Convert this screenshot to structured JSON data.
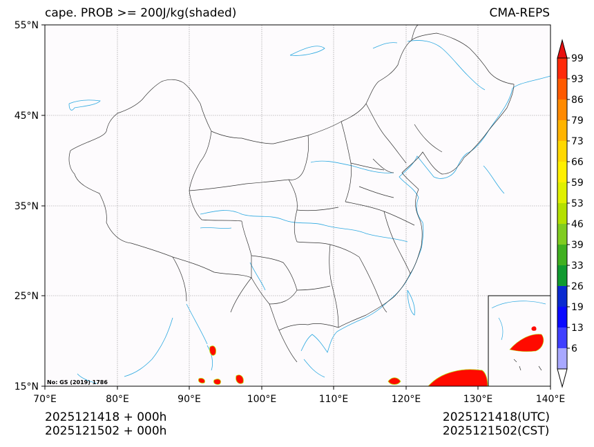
{
  "title_left": "cape. PROB >= 200J/kg(shaded)",
  "title_right": "CMA-REPS",
  "footer": {
    "left_line1": "2025121418  +  000h",
    "left_line2": "2025121502  +  000h",
    "right_line1": "2025121418(UTC)",
    "right_line2": "2025121502(CST)"
  },
  "credit": "No: GS (2019) 1786",
  "axes": {
    "lon_ticks": [
      "70°E",
      "80°E",
      "90°E",
      "100°E",
      "110°E",
      "120°E",
      "130°E",
      "140°E"
    ],
    "lat_ticks": [
      "55°N",
      "45°N",
      "35°N",
      "25°N",
      "15°N"
    ]
  },
  "colorbar": {
    "labels": [
      "99",
      "93",
      "86",
      "79",
      "73",
      "66",
      "59",
      "53",
      "46",
      "39",
      "33",
      "26",
      "19",
      "13",
      "6"
    ],
    "colors": [
      "#ff2a0a",
      "#ff5a00",
      "#ff8a00",
      "#ffb400",
      "#ffd800",
      "#fff000",
      "#e0f000",
      "#b4e000",
      "#80cc20",
      "#40b020",
      "#109a30",
      "#0a2ad0",
      "#0a0aff",
      "#4040ff",
      "#a8a8ff"
    ],
    "top_arrow_color": "#e81010",
    "bottom_arrow_color": "#ffffff"
  },
  "colors": {
    "coast": "#2aa8e0",
    "border": "#202020",
    "grid": "#888888",
    "shade": "#ff0a00",
    "map_bg": "#fdfbfd"
  }
}
